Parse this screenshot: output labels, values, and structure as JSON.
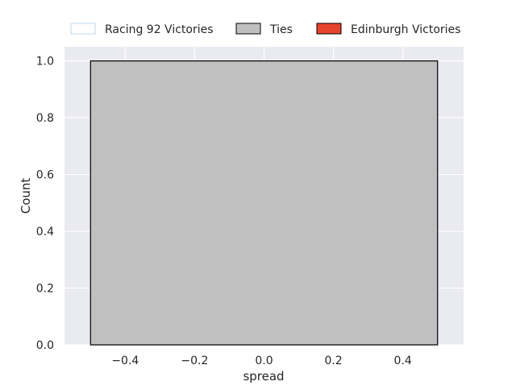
{
  "chart_data": {
    "type": "bar",
    "xlabel": "spread",
    "ylabel": "Count",
    "xlim": [
      -0.575,
      0.575
    ],
    "ylim": [
      0,
      1.05
    ],
    "xticks": [
      -0.4,
      -0.2,
      0.0,
      0.2,
      0.4
    ],
    "xtick_labels": [
      "−0.4",
      "−0.2",
      "0.0",
      "0.2",
      "0.4"
    ],
    "yticks": [
      0.0,
      0.2,
      0.4,
      0.6,
      0.8,
      1.0
    ],
    "ytick_labels": [
      "0.0",
      "0.2",
      "0.4",
      "0.6",
      "0.8",
      "1.0"
    ],
    "grid": true,
    "legend_position": "top",
    "series": [
      {
        "name": "Racing 92 Victories",
        "fill": "#ffffff",
        "edge": "#b9d9f2",
        "bars": []
      },
      {
        "name": "Ties",
        "fill": "#c0c0c0",
        "edge": "#000000",
        "bars": [
          {
            "x_start": -0.5,
            "x_end": 0.5,
            "count": 1
          }
        ]
      },
      {
        "name": "Edinburgh Victories",
        "fill": "#e8442c",
        "edge": "#000000",
        "bars": []
      }
    ],
    "colors": {
      "plot_background": "#eaeaf2",
      "grid": "#ffffff",
      "text": "#262626"
    }
  }
}
